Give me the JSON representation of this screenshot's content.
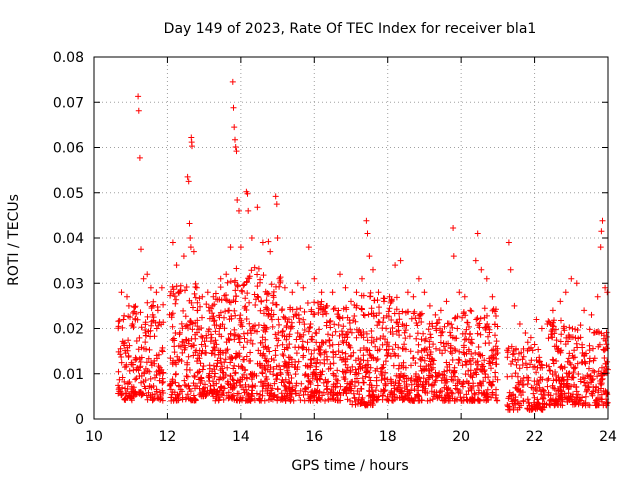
{
  "chart_data": {
    "type": "scatter",
    "title": "Day 149 of 2023, Rate Of TEC Index for receiver bla1",
    "xlabel": "GPS time / hours",
    "ylabel": "ROTI / TECUs",
    "xlim": [
      10,
      24
    ],
    "ylim": [
      0,
      0.08
    ],
    "xticks": [
      10,
      12,
      14,
      16,
      18,
      20,
      22,
      24
    ],
    "xtick_labels": [
      "10",
      "12",
      "14",
      "16",
      "18",
      "20",
      "22",
      "24"
    ],
    "yticks": [
      0,
      0.01,
      0.02,
      0.03,
      0.04,
      0.05,
      0.06,
      0.07,
      0.08
    ],
    "ytick_labels": [
      "0",
      "0.01",
      "0.02",
      "0.03",
      "0.04",
      "0.05",
      "0.06",
      "0.07",
      "0.08"
    ],
    "grid": true,
    "marker": "+",
    "color": "#ff0000",
    "series": [
      {
        "name": "ROTI",
        "points": [
          [
            10.75,
            0.028
          ],
          [
            10.8,
            0.022
          ],
          [
            10.9,
            0.027
          ],
          [
            10.95,
            0.025
          ],
          [
            11.05,
            0.021
          ],
          [
            11.2,
            0.0713
          ],
          [
            11.22,
            0.0681
          ],
          [
            11.25,
            0.0577
          ],
          [
            11.28,
            0.0375
          ],
          [
            11.35,
            0.031
          ],
          [
            11.45,
            0.032
          ],
          [
            11.55,
            0.029
          ],
          [
            11.7,
            0.028
          ],
          [
            11.85,
            0.029
          ],
          [
            12.15,
            0.039
          ],
          [
            12.25,
            0.034
          ],
          [
            12.3,
            0.028
          ],
          [
            12.45,
            0.036
          ],
          [
            12.55,
            0.0535
          ],
          [
            12.58,
            0.0525
          ],
          [
            12.6,
            0.0432
          ],
          [
            12.62,
            0.04
          ],
          [
            12.64,
            0.038
          ],
          [
            12.65,
            0.0622
          ],
          [
            12.66,
            0.0612
          ],
          [
            12.67,
            0.0603
          ],
          [
            12.72,
            0.037
          ],
          [
            12.8,
            0.029
          ],
          [
            12.95,
            0.027
          ],
          [
            13.1,
            0.028
          ],
          [
            13.25,
            0.027
          ],
          [
            13.45,
            0.031
          ],
          [
            13.6,
            0.032
          ],
          [
            13.72,
            0.038
          ],
          [
            13.78,
            0.0745
          ],
          [
            13.8,
            0.0688
          ],
          [
            13.82,
            0.0645
          ],
          [
            13.84,
            0.0617
          ],
          [
            13.86,
            0.0601
          ],
          [
            13.88,
            0.0592
          ],
          [
            13.9,
            0.0484
          ],
          [
            13.95,
            0.046
          ],
          [
            14.0,
            0.038
          ],
          [
            14.15,
            0.0502
          ],
          [
            14.18,
            0.0498
          ],
          [
            14.2,
            0.046
          ],
          [
            14.3,
            0.04
          ],
          [
            14.45,
            0.0468
          ],
          [
            14.6,
            0.039
          ],
          [
            14.75,
            0.0392
          ],
          [
            14.8,
            0.037
          ],
          [
            14.95,
            0.0492
          ],
          [
            14.98,
            0.0475
          ],
          [
            15.0,
            0.04
          ],
          [
            15.05,
            0.031
          ],
          [
            15.2,
            0.029
          ],
          [
            15.4,
            0.028
          ],
          [
            15.55,
            0.03
          ],
          [
            15.7,
            0.029
          ],
          [
            15.85,
            0.038
          ],
          [
            16.0,
            0.031
          ],
          [
            16.2,
            0.028
          ],
          [
            16.35,
            0.025
          ],
          [
            16.5,
            0.028
          ],
          [
            16.7,
            0.032
          ],
          [
            16.85,
            0.029
          ],
          [
            17.0,
            0.026
          ],
          [
            17.15,
            0.028
          ],
          [
            17.3,
            0.031
          ],
          [
            17.42,
            0.0438
          ],
          [
            17.45,
            0.041
          ],
          [
            17.5,
            0.036
          ],
          [
            17.6,
            0.033
          ],
          [
            17.75,
            0.028
          ],
          [
            17.9,
            0.026
          ],
          [
            18.05,
            0.027
          ],
          [
            18.2,
            0.034
          ],
          [
            18.35,
            0.035
          ],
          [
            18.55,
            0.028
          ],
          [
            18.7,
            0.027
          ],
          [
            18.85,
            0.031
          ],
          [
            19.0,
            0.028
          ],
          [
            19.15,
            0.025
          ],
          [
            19.3,
            0.023
          ],
          [
            19.45,
            0.024
          ],
          [
            19.6,
            0.026
          ],
          [
            19.78,
            0.0422
          ],
          [
            19.8,
            0.036
          ],
          [
            19.95,
            0.028
          ],
          [
            20.1,
            0.027
          ],
          [
            20.25,
            0.024
          ],
          [
            20.4,
            0.035
          ],
          [
            20.45,
            0.041
          ],
          [
            20.55,
            0.033
          ],
          [
            20.7,
            0.031
          ],
          [
            20.85,
            0.027
          ],
          [
            21.3,
            0.039
          ],
          [
            21.35,
            0.033
          ],
          [
            21.45,
            0.025
          ],
          [
            21.6,
            0.021
          ],
          [
            21.75,
            0.019
          ],
          [
            21.9,
            0.018
          ],
          [
            22.05,
            0.022
          ],
          [
            22.2,
            0.02
          ],
          [
            22.35,
            0.021
          ],
          [
            22.5,
            0.024
          ],
          [
            22.7,
            0.026
          ],
          [
            22.85,
            0.028
          ],
          [
            23.0,
            0.031
          ],
          [
            23.15,
            0.03
          ],
          [
            23.35,
            0.024
          ],
          [
            23.55,
            0.023
          ],
          [
            23.72,
            0.027
          ],
          [
            23.8,
            0.038
          ],
          [
            23.82,
            0.0415
          ],
          [
            23.85,
            0.0438
          ],
          [
            23.92,
            0.029
          ],
          [
            23.98,
            0.028
          ]
        ],
        "bands": [
          {
            "x": [
              10.65,
              11.05
            ],
            "y": [
              0.004,
              0.023
            ],
            "density": 70
          },
          {
            "x": [
              11.05,
              11.45
            ],
            "y": [
              0.005,
              0.025
            ],
            "density": 70
          },
          {
            "x": [
              11.45,
              11.9
            ],
            "y": [
              0.004,
              0.026
            ],
            "density": 80
          },
          {
            "x": [
              12.05,
              12.8
            ],
            "y": [
              0.004,
              0.03
            ],
            "density": 150
          },
          {
            "x": [
              12.8,
              13.3
            ],
            "y": [
              0.005,
              0.027
            ],
            "density": 110
          },
          {
            "x": [
              13.3,
              13.75
            ],
            "y": [
              0.004,
              0.031
            ],
            "density": 110
          },
          {
            "x": [
              13.75,
              14.5
            ],
            "y": [
              0.004,
              0.034
            ],
            "density": 170
          },
          {
            "x": [
              14.5,
              15.1
            ],
            "y": [
              0.004,
              0.032
            ],
            "density": 140
          },
          {
            "x": [
              15.1,
              15.6
            ],
            "y": [
              0.004,
              0.025
            ],
            "density": 110
          },
          {
            "x": [
              15.6,
              16.3
            ],
            "y": [
              0.004,
              0.026
            ],
            "density": 140
          },
          {
            "x": [
              16.3,
              17.0
            ],
            "y": [
              0.004,
              0.025
            ],
            "density": 140
          },
          {
            "x": [
              17.0,
              17.6
            ],
            "y": [
              0.003,
              0.028
            ],
            "density": 130
          },
          {
            "x": [
              17.6,
              18.3
            ],
            "y": [
              0.004,
              0.027
            ],
            "density": 140
          },
          {
            "x": [
              18.3,
              19.0
            ],
            "y": [
              0.004,
              0.024
            ],
            "density": 140
          },
          {
            "x": [
              19.0,
              19.7
            ],
            "y": [
              0.004,
              0.022
            ],
            "density": 130
          },
          {
            "x": [
              19.7,
              20.4
            ],
            "y": [
              0.004,
              0.024
            ],
            "density": 130
          },
          {
            "x": [
              20.4,
              21.0
            ],
            "y": [
              0.004,
              0.025
            ],
            "density": 120
          },
          {
            "x": [
              21.25,
              21.75
            ],
            "y": [
              0.002,
              0.016
            ],
            "density": 70
          },
          {
            "x": [
              21.75,
              22.3
            ],
            "y": [
              0.002,
              0.017
            ],
            "density": 90
          },
          {
            "x": [
              22.3,
              22.9
            ],
            "y": [
              0.003,
              0.022
            ],
            "density": 120
          },
          {
            "x": [
              22.9,
              23.5
            ],
            "y": [
              0.003,
              0.021
            ],
            "density": 110
          },
          {
            "x": [
              23.5,
              24.0
            ],
            "y": [
              0.003,
              0.02
            ],
            "density": 100
          }
        ]
      }
    ]
  }
}
